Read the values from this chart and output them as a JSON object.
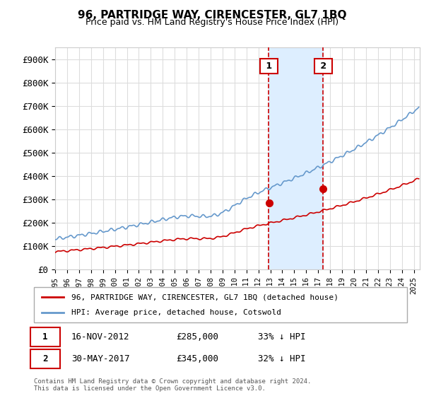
{
  "title": "96, PARTRIDGE WAY, CIRENCESTER, GL7 1BQ",
  "subtitle": "Price paid vs. HM Land Registry's House Price Index (HPI)",
  "ylabel": "",
  "ylim": [
    0,
    950000
  ],
  "yticks": [
    0,
    100000,
    200000,
    300000,
    400000,
    500000,
    600000,
    700000,
    800000,
    900000
  ],
  "ytick_labels": [
    "£0",
    "£100K",
    "£200K",
    "£300K",
    "£400K",
    "£500K",
    "£600K",
    "£700K",
    "£800K",
    "£900K"
  ],
  "xlim_start": 1995.0,
  "xlim_end": 2025.5,
  "transaction1_date": 2012.88,
  "transaction1_price": 285000,
  "transaction2_date": 2017.42,
  "transaction2_price": 345000,
  "red_line_color": "#cc0000",
  "blue_line_color": "#6699cc",
  "shade_color": "#ddeeff",
  "vline_color": "#cc0000",
  "marker_box_color": "#cc0000",
  "background_color": "#ffffff",
  "grid_color": "#dddddd",
  "legend_label_red": "96, PARTRIDGE WAY, CIRENCESTER, GL7 1BQ (detached house)",
  "legend_label_blue": "HPI: Average price, detached house, Cotswold",
  "footnote": "Contains HM Land Registry data © Crown copyright and database right 2024.\nThis data is licensed under the Open Government Licence v3.0.",
  "table_row1": [
    "1",
    "16-NOV-2012",
    "£285,000",
    "33% ↓ HPI"
  ],
  "table_row2": [
    "2",
    "30-MAY-2017",
    "£345,000",
    "32% ↓ HPI"
  ]
}
